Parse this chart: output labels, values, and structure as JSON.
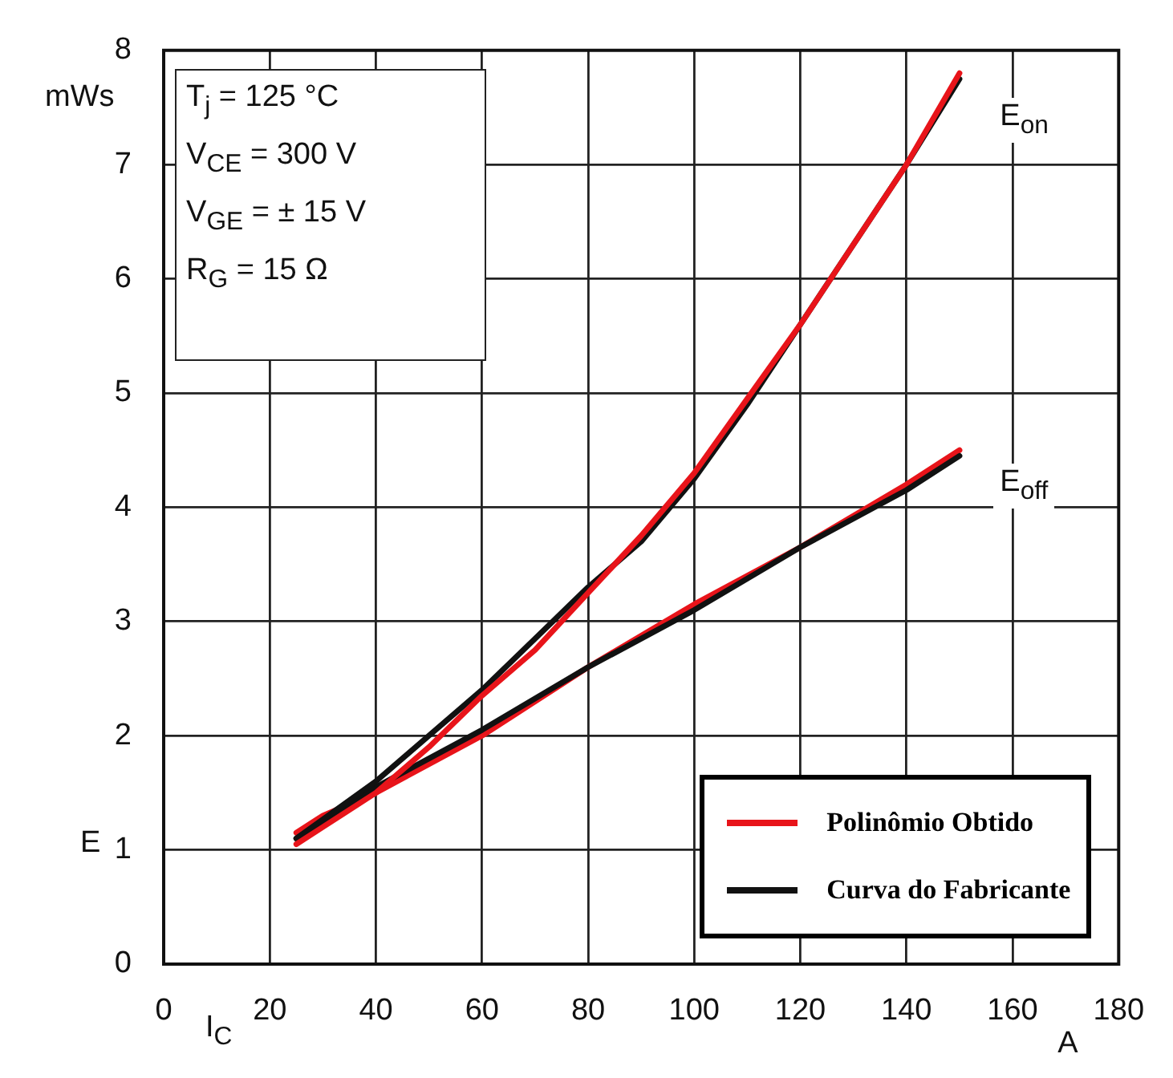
{
  "chart_data": {
    "type": "line",
    "xlabel": "I$_{C}$",
    "ylabel": "E",
    "xlim": [
      0,
      180
    ],
    "xticks": [
      0,
      20,
      40,
      60,
      80,
      100,
      120,
      140,
      160,
      180
    ],
    "ylim": [
      0,
      8
    ],
    "yticks": [
      0,
      1,
      2,
      3,
      4,
      5,
      6,
      7,
      8
    ],
    "grid": true,
    "legend": "bottom right",
    "marker": "none",
    "line_style": "solid",
    "series": [
      {
        "name": "Polinômio Obtido",
        "color": "#e8141a",
        "x": [
          25,
          30,
          40,
          50,
          60,
          70,
          80,
          90,
          100,
          110,
          120,
          130,
          140,
          150
        ],
        "values": [
          1.05,
          1.2,
          1.5,
          1.9,
          2.35,
          2.75,
          3.25,
          3.75,
          4.3,
          4.95,
          5.6,
          6.3,
          7.0,
          7.8
        ]
      },
      {
        "name": "Curva do Fabricante",
        "color": "#111111",
        "x": [
          25,
          40,
          50,
          60,
          70,
          80,
          90,
          100,
          110,
          120,
          130,
          140,
          150
        ],
        "values": [
          1.1,
          1.6,
          2.0,
          2.4,
          2.85,
          3.3,
          3.7,
          4.25,
          4.9,
          5.6,
          6.3,
          7.0,
          7.75
        ]
      },
      {
        "color": "#111111",
        "x": [
          25,
          40,
          60,
          80,
          100,
          120,
          140,
          150
        ],
        "values": [
          1.1,
          1.55,
          2.05,
          2.6,
          3.1,
          3.65,
          4.15,
          4.45
        ]
      },
      {
        "color": "#e8141a",
        "x": [
          25,
          30,
          40,
          60,
          80,
          100,
          120,
          140,
          150
        ],
        "values": [
          1.15,
          1.3,
          1.5,
          2.0,
          2.6,
          3.15,
          3.65,
          4.2,
          4.5
        ]
      }
    ],
    "annotations": [
      "mWs",
      "A",
      "T$_{j}$ = 125 °C",
      "V$_{CE}$ = 300 V",
      "V$_{GE}$ = ± 15 V",
      "R$_{G}$ = 15 Ω",
      "E$_{on}$",
      "E$_{off}$"
    ]
  }
}
